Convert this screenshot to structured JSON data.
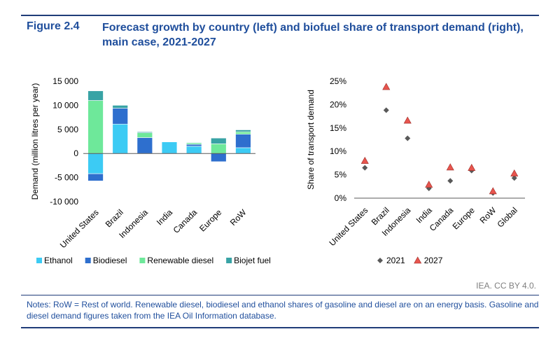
{
  "header": {
    "figure_number": "Figure 2.4",
    "title": "Forecast growth by country (left) and biofuel share of transport demand (right), main case, 2021-2027"
  },
  "footer": {
    "credit": "IEA. CC BY 4.0.",
    "notes": "Notes: RoW = Rest of world. Renewable diesel, biodiesel and ethanol shares of gasoline and diesel are on an energy basis. Gasoline and diesel demand figures taken from the IEA Oil Information database."
  },
  "chart_data": [
    {
      "type": "bar",
      "stacked": true,
      "ylabel": "Demand (million litres per year)",
      "ylim": [
        -10000,
        15000
      ],
      "yticks": [
        -10000,
        -5000,
        0,
        5000,
        10000,
        15000
      ],
      "ytick_labels": [
        "-10 000",
        "-5 000",
        "0",
        "5 000",
        "10 000",
        "15 000"
      ],
      "categories": [
        "United States",
        "Brazil",
        "Indonesia",
        "India",
        "Canada",
        "Europe",
        "RoW"
      ],
      "series": [
        {
          "name": "Ethanol",
          "color": "#3ccbf4",
          "values": [
            -4200,
            6100,
            0,
            2400,
            1500,
            0,
            1200
          ]
        },
        {
          "name": "Biodiesel",
          "color": "#2e6fce",
          "values": [
            -1500,
            3300,
            3300,
            0,
            400,
            -1700,
            2800
          ]
        },
        {
          "name": "Renewable diesel",
          "color": "#6ee89a",
          "values": [
            11000,
            0,
            1000,
            0,
            300,
            2000,
            500
          ]
        },
        {
          "name": "Biojet fuel",
          "color": "#38a3a5",
          "values": [
            2000,
            600,
            200,
            0,
            100,
            1200,
            400
          ]
        }
      ],
      "legend_position": "bottom"
    },
    {
      "type": "scatter",
      "ylabel": "Share of transport demand",
      "ylim": [
        0,
        25
      ],
      "yticks": [
        0,
        5,
        10,
        15,
        20,
        25
      ],
      "ytick_labels": [
        "0%",
        "5%",
        "10%",
        "15%",
        "20%",
        "25%"
      ],
      "categories": [
        "United States",
        "Brazil",
        "Indonesia",
        "India",
        "Canada",
        "Europe",
        "RoW",
        "Global"
      ],
      "series": [
        {
          "name": "2021",
          "marker": "diamond",
          "color": "#595959",
          "values": [
            6.5,
            18.8,
            12.8,
            2.1,
            3.7,
            5.9,
            1.1,
            4.3
          ]
        },
        {
          "name": "2027",
          "marker": "triangle",
          "color": "#e8554e",
          "values": [
            8.0,
            23.8,
            16.6,
            2.9,
            6.6,
            6.5,
            1.5,
            5.3
          ]
        }
      ],
      "legend_position": "bottom"
    }
  ]
}
